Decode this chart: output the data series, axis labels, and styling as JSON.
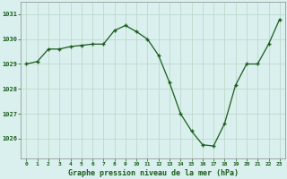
{
  "x": [
    0,
    1,
    2,
    3,
    4,
    5,
    6,
    7,
    8,
    9,
    10,
    11,
    12,
    13,
    14,
    15,
    16,
    17,
    18,
    19,
    20,
    21,
    22,
    23
  ],
  "y": [
    1029.0,
    1029.1,
    1029.6,
    1029.6,
    1029.7,
    1029.75,
    1029.8,
    1029.8,
    1030.35,
    1030.55,
    1030.3,
    1030.0,
    1029.35,
    1028.25,
    1027.0,
    1026.3,
    1025.75,
    1025.7,
    1026.6,
    1028.15,
    1029.0,
    1029.0,
    1029.8,
    1030.8
  ],
  "line_color": "#1a5c1a",
  "marker_color": "#1a5c1a",
  "bg_color": "#d9f0ee",
  "grid_color": "#c0d8cc",
  "xlabel": "Graphe pression niveau de la mer (hPa)",
  "xlabel_color": "#1a5c1a",
  "tick_color": "#1a5c1a",
  "ylim_min": 1025.2,
  "ylim_max": 1031.5,
  "yticks": [
    1026,
    1027,
    1028,
    1029,
    1030,
    1031
  ],
  "ytick_labels": [
    "1026",
    "1027",
    "1028",
    "1029",
    "1030",
    "1031"
  ],
  "spine_color": "#999999"
}
